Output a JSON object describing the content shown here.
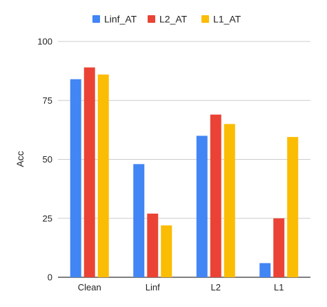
{
  "chart_data": {
    "type": "bar",
    "title": "",
    "xlabel": "",
    "ylabel": "Acc",
    "ylim": [
      0,
      100
    ],
    "yticks": [
      "0",
      "25",
      "50",
      "75",
      "100"
    ],
    "grid": true,
    "legend_position": "top",
    "categories": [
      "Clean",
      "Linf",
      "L2",
      "L1"
    ],
    "series": [
      {
        "name": "Linf_AT",
        "color": "#4285F4",
        "values": [
          84,
          48,
          60,
          6
        ]
      },
      {
        "name": "L2_AT",
        "color": "#EA4335",
        "values": [
          89,
          27,
          69,
          25
        ]
      },
      {
        "name": "L1_AT",
        "color": "#FBBC04",
        "values": [
          86,
          22,
          65,
          59.5
        ]
      }
    ]
  }
}
